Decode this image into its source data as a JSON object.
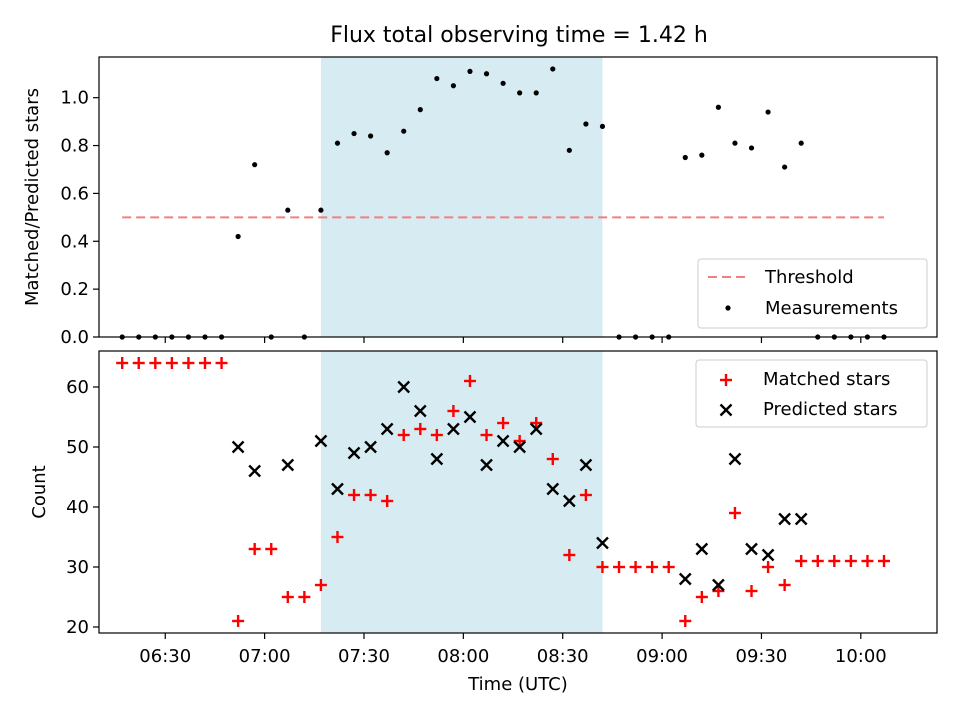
{
  "title": "Flux total observing time = 1.42 h",
  "xlabel": "Time (UTC)",
  "x_ticks": [
    "06:30",
    "07:00",
    "07:30",
    "08:00",
    "08:30",
    "09:00",
    "09:30",
    "10:00"
  ],
  "colors": {
    "threshold": "#f08080",
    "matched": "#ff0000",
    "predicted": "#000000",
    "span": "#add8e6"
  },
  "chart_data": [
    {
      "type": "scatter",
      "ylabel": "Matched/Predicted stars",
      "ylim": [
        0,
        1.17
      ],
      "xlim": [
        "06:10",
        "10:23"
      ],
      "y_ticks": [
        "0.0",
        "0.2",
        "0.4",
        "0.6",
        "0.8",
        "1.0"
      ],
      "shaded_span": [
        "07:17",
        "08:42"
      ],
      "threshold": {
        "name": "Threshold",
        "value": 0.5,
        "x_range": [
          "06:17",
          "10:07"
        ]
      },
      "legend": {
        "position": "bottom-right",
        "entries": [
          "Threshold",
          "Measurements"
        ]
      },
      "series": [
        {
          "name": "Measurements",
          "marker": "dot",
          "points": [
            [
              "06:17",
              0
            ],
            [
              "06:22",
              0
            ],
            [
              "06:27",
              0
            ],
            [
              "06:32",
              0
            ],
            [
              "06:37",
              0
            ],
            [
              "06:42",
              0
            ],
            [
              "06:47",
              0
            ],
            [
              "06:52",
              0.42
            ],
            [
              "06:57",
              0.72
            ],
            [
              "07:02",
              0
            ],
            [
              "07:07",
              0.53
            ],
            [
              "07:12",
              0
            ],
            [
              "07:17",
              0.53
            ],
            [
              "07:22",
              0.81
            ],
            [
              "07:27",
              0.85
            ],
            [
              "07:32",
              0.84
            ],
            [
              "07:37",
              0.77
            ],
            [
              "07:42",
              0.86
            ],
            [
              "07:47",
              0.95
            ],
            [
              "07:52",
              1.08
            ],
            [
              "07:57",
              1.05
            ],
            [
              "08:02",
              1.11
            ],
            [
              "08:07",
              1.1
            ],
            [
              "08:12",
              1.06
            ],
            [
              "08:17",
              1.02
            ],
            [
              "08:22",
              1.02
            ],
            [
              "08:27",
              1.12
            ],
            [
              "08:32",
              0.78
            ],
            [
              "08:37",
              0.89
            ],
            [
              "08:42",
              0.88
            ],
            [
              "08:47",
              0
            ],
            [
              "08:52",
              0
            ],
            [
              "08:57",
              0
            ],
            [
              "09:02",
              0
            ],
            [
              "09:07",
              0.75
            ],
            [
              "09:12",
              0.76
            ],
            [
              "09:17",
              0.96
            ],
            [
              "09:22",
              0.81
            ],
            [
              "09:27",
              0.79
            ],
            [
              "09:32",
              0.94
            ],
            [
              "09:37",
              0.71
            ],
            [
              "09:42",
              0.81
            ],
            [
              "09:47",
              0
            ],
            [
              "09:52",
              0
            ],
            [
              "09:57",
              0
            ],
            [
              "10:02",
              0
            ],
            [
              "10:07",
              0
            ]
          ]
        }
      ]
    },
    {
      "type": "scatter",
      "ylabel": "Count",
      "ylim": [
        19,
        66
      ],
      "xlim": [
        "06:10",
        "10:23"
      ],
      "y_ticks": [
        "20",
        "30",
        "40",
        "50",
        "60"
      ],
      "shaded_span": [
        "07:17",
        "08:42"
      ],
      "legend": {
        "position": "top-right",
        "entries": [
          "Matched stars",
          "Predicted stars"
        ]
      },
      "series": [
        {
          "name": "Matched stars",
          "marker": "plus",
          "points": [
            [
              "06:17",
              64
            ],
            [
              "06:22",
              64
            ],
            [
              "06:27",
              64
            ],
            [
              "06:32",
              64
            ],
            [
              "06:37",
              64
            ],
            [
              "06:42",
              64
            ],
            [
              "06:47",
              64
            ],
            [
              "06:52",
              21
            ],
            [
              "06:57",
              33
            ],
            [
              "07:02",
              33
            ],
            [
              "07:07",
              25
            ],
            [
              "07:12",
              25
            ],
            [
              "07:17",
              27
            ],
            [
              "07:22",
              35
            ],
            [
              "07:27",
              42
            ],
            [
              "07:32",
              42
            ],
            [
              "07:37",
              41
            ],
            [
              "07:42",
              52
            ],
            [
              "07:47",
              53
            ],
            [
              "07:52",
              52
            ],
            [
              "07:57",
              56
            ],
            [
              "08:02",
              61
            ],
            [
              "08:07",
              52
            ],
            [
              "08:12",
              54
            ],
            [
              "08:17",
              51
            ],
            [
              "08:22",
              54
            ],
            [
              "08:27",
              48
            ],
            [
              "08:32",
              32
            ],
            [
              "08:37",
              42
            ],
            [
              "08:42",
              30
            ],
            [
              "08:47",
              30
            ],
            [
              "08:52",
              30
            ],
            [
              "08:57",
              30
            ],
            [
              "09:02",
              30
            ],
            [
              "09:07",
              21
            ],
            [
              "09:12",
              25
            ],
            [
              "09:17",
              26
            ],
            [
              "09:22",
              39
            ],
            [
              "09:27",
              26
            ],
            [
              "09:32",
              30
            ],
            [
              "09:37",
              27
            ],
            [
              "09:42",
              31
            ],
            [
              "09:47",
              31
            ],
            [
              "09:52",
              31
            ],
            [
              "09:57",
              31
            ],
            [
              "10:02",
              31
            ],
            [
              "10:07",
              31
            ]
          ]
        },
        {
          "name": "Predicted stars",
          "marker": "x",
          "points": [
            [
              "06:52",
              50
            ],
            [
              "06:57",
              46
            ],
            [
              "07:07",
              47
            ],
            [
              "07:17",
              51
            ],
            [
              "07:22",
              43
            ],
            [
              "07:27",
              49
            ],
            [
              "07:32",
              50
            ],
            [
              "07:37",
              53
            ],
            [
              "07:42",
              60
            ],
            [
              "07:47",
              56
            ],
            [
              "07:52",
              48
            ],
            [
              "07:57",
              53
            ],
            [
              "08:02",
              55
            ],
            [
              "08:07",
              47
            ],
            [
              "08:12",
              51
            ],
            [
              "08:17",
              50
            ],
            [
              "08:22",
              53
            ],
            [
              "08:27",
              43
            ],
            [
              "08:32",
              41
            ],
            [
              "08:37",
              47
            ],
            [
              "08:42",
              34
            ],
            [
              "09:07",
              28
            ],
            [
              "09:12",
              33
            ],
            [
              "09:17",
              27
            ],
            [
              "09:22",
              48
            ],
            [
              "09:27",
              33
            ],
            [
              "09:32",
              32
            ],
            [
              "09:37",
              38
            ],
            [
              "09:42",
              38
            ]
          ]
        }
      ]
    }
  ]
}
